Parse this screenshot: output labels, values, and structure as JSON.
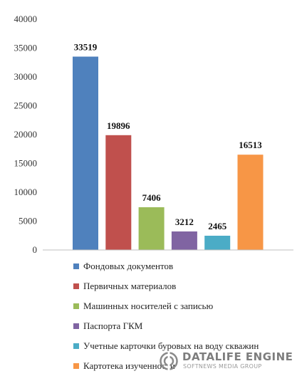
{
  "chart_data": {
    "type": "bar",
    "categories": [
      "Фондовых документов",
      "Первичных материалов",
      "Машинных носителей с записью",
      "Паспорта ГКМ",
      "Учетные карточки буровых на воду скважин",
      "Картотека изученности"
    ],
    "values": [
      33519,
      19896,
      7406,
      3212,
      2465,
      16513
    ],
    "data_labels": [
      "33519",
      "19896",
      "7406",
      "3212",
      "2465",
      "16513"
    ],
    "colors": [
      "#4f81bd",
      "#c0504d",
      "#9bbb59",
      "#8064a2",
      "#4bacc6",
      "#f79646"
    ],
    "y_ticks": [
      "0",
      "5000",
      "10000",
      "15000",
      "20000",
      "25000",
      "30000",
      "35000",
      "40000"
    ],
    "ylim": [
      0,
      40000
    ],
    "grid": false,
    "legend_position": "bottom",
    "title": "",
    "xlabel": "",
    "ylabel": ""
  },
  "watermark": {
    "title": "DATALIFE ENGINE",
    "subtitle": "SOFTNEWS MEDIA GROUP"
  }
}
